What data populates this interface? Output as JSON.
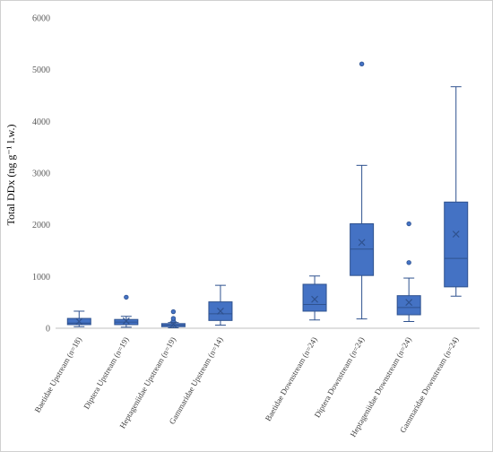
{
  "chart_data": {
    "type": "box",
    "ylabel": "Total DDx (ng g⁻¹ l.w.)",
    "ylim": [
      0,
      6000
    ],
    "yticks": [
      0,
      1000,
      2000,
      3000,
      4000,
      5000,
      6000
    ],
    "grid": false,
    "legend": "none",
    "colors": {
      "box_fill": "#4472C4",
      "box_edge": "#2F528F",
      "whisker": "#2F528F",
      "axis": "#BFBFBF"
    },
    "categories": [
      "Baetidae Upstream (n=18)",
      "Diptera Upstream (n=19)",
      "Heptageniidae Upstream (n=19)",
      "Gammaridae Upstream (n=14)",
      "",
      "Baetidae Downstream (n=24)",
      "Diptera Downstream (n=24)",
      "Heptageniidae Downstream (n=24)",
      "Gammaridae Downstream (n=24)"
    ],
    "boxes": [
      {
        "category": "Baetidae Upstream (n=18)",
        "min": 30,
        "q1": 70,
        "median": 100,
        "q3": 190,
        "max": 330,
        "mean": 130,
        "outliers": []
      },
      {
        "category": "Diptera Upstream (n=19)",
        "min": 20,
        "q1": 70,
        "median": 120,
        "q3": 170,
        "max": 230,
        "mean": 140,
        "outliers": [
          600
        ]
      },
      {
        "category": "Heptageniidae Upstream (n=19)",
        "min": 10,
        "q1": 30,
        "median": 60,
        "q3": 90,
        "max": 110,
        "mean": 70,
        "outliers": [
          150,
          190,
          320
        ]
      },
      {
        "category": "Gammaridae Upstream (n=14)",
        "min": 60,
        "q1": 150,
        "median": 280,
        "q3": 510,
        "max": 830,
        "mean": 330,
        "outliers": []
      },
      null,
      {
        "category": "Baetidae Downstream (n=24)",
        "min": 160,
        "q1": 330,
        "median": 460,
        "q3": 850,
        "max": 1010,
        "mean": 560,
        "outliers": []
      },
      {
        "category": "Diptera Downstream (n=24)",
        "min": 180,
        "q1": 1020,
        "median": 1530,
        "q3": 2020,
        "max": 3150,
        "mean": 1660,
        "outliers": [
          5110
        ]
      },
      {
        "category": "Heptageniidae Downstream (n=24)",
        "min": 130,
        "q1": 260,
        "median": 400,
        "q3": 630,
        "max": 970,
        "mean": 500,
        "outliers": [
          1270,
          2020
        ]
      },
      {
        "category": "Gammaridae Downstream (n=24)",
        "min": 620,
        "q1": 800,
        "median": 1350,
        "q3": 2440,
        "max": 4670,
        "mean": 1820,
        "outliers": []
      }
    ]
  }
}
